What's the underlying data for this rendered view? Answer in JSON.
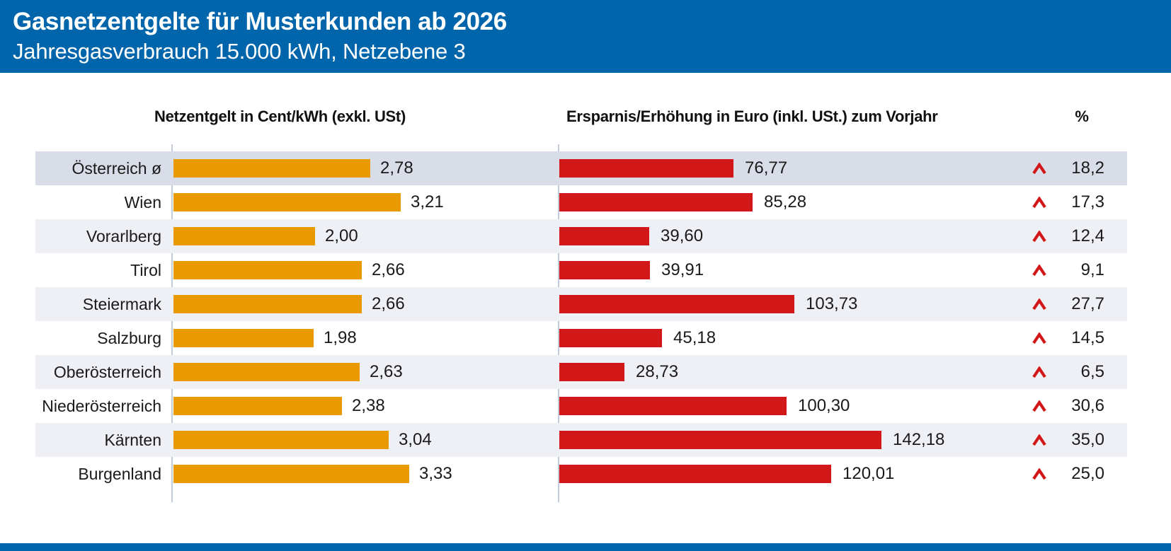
{
  "header": {
    "title": "Gasnetzentgelte für Musterkunden ab 2026",
    "subtitle": "Jahresgasverbrauch 15.000 kWh, Netzebene 3"
  },
  "columns": {
    "left_header": "Netzentgelt in Cent/kWh (exkl. USt)",
    "right_header": "Ersparnis/Erhöhung in Euro (inkl. USt.) zum Vorjahr",
    "percent_header": "%"
  },
  "colors": {
    "brand_blue": "#0065ab",
    "bar_orange": "#e89a00",
    "bar_red": "#d11718",
    "row_highlight": "#d8dde8",
    "row_alt": "#eef0f5",
    "axis_line": "#c2cdd9",
    "text_dark": "#1a1a1a"
  },
  "chart_data": {
    "type": "bar",
    "orientation": "horizontal",
    "title": "Gasnetzentgelte für Musterkunden ab 2026",
    "subtitle": "Jahresgasverbrauch 15.000 kWh, Netzebene 3",
    "categories": [
      "Österreich ø",
      "Wien",
      "Vorarlberg",
      "Tirol",
      "Steiermark",
      "Salzburg",
      "Oberösterreich",
      "Niederösterreich",
      "Kärnten",
      "Burgenland"
    ],
    "series": [
      {
        "name": "Netzentgelt in Cent/kWh (exkl. USt)",
        "values": [
          2.78,
          3.21,
          2.0,
          2.66,
          2.66,
          1.98,
          2.63,
          2.38,
          3.04,
          3.33
        ],
        "xlim": [
          0,
          3.5
        ],
        "color": "#e89a00"
      },
      {
        "name": "Ersparnis/Erhöhung in Euro (inkl. USt.) zum Vorjahr",
        "values": [
          76.77,
          85.28,
          39.6,
          39.91,
          103.73,
          45.18,
          28.73,
          100.3,
          142.18,
          120.01
        ],
        "xlim": [
          0,
          160
        ],
        "color": "#d11718"
      },
      {
        "name": "%",
        "values": [
          18.2,
          17.3,
          12.4,
          9.1,
          27.7,
          14.5,
          6.5,
          30.6,
          35.0,
          25.0
        ],
        "direction": "increase"
      }
    ],
    "legend": "none",
    "grid": "off",
    "rows": [
      {
        "region": "Österreich ø",
        "netzentgelt": 2.78,
        "netzentgelt_label": "2,78",
        "ersparnis": 76.77,
        "ersparnis_label": "76,77",
        "percent": 18.2,
        "percent_label": "18,2"
      },
      {
        "region": "Wien",
        "netzentgelt": 3.21,
        "netzentgelt_label": "3,21",
        "ersparnis": 85.28,
        "ersparnis_label": "85,28",
        "percent": 17.3,
        "percent_label": "17,3"
      },
      {
        "region": "Vorarlberg",
        "netzentgelt": 2.0,
        "netzentgelt_label": "2,00",
        "ersparnis": 39.6,
        "ersparnis_label": "39,60",
        "percent": 12.4,
        "percent_label": "12,4"
      },
      {
        "region": "Tirol",
        "netzentgelt": 2.66,
        "netzentgelt_label": "2,66",
        "ersparnis": 39.91,
        "ersparnis_label": "39,91",
        "percent": 9.1,
        "percent_label": "9,1"
      },
      {
        "region": "Steiermark",
        "netzentgelt": 2.66,
        "netzentgelt_label": "2,66",
        "ersparnis": 103.73,
        "ersparnis_label": "103,73",
        "percent": 27.7,
        "percent_label": "27,7"
      },
      {
        "region": "Salzburg",
        "netzentgelt": 1.98,
        "netzentgelt_label": "1,98",
        "ersparnis": 45.18,
        "ersparnis_label": "45,18",
        "percent": 14.5,
        "percent_label": "14,5"
      },
      {
        "region": "Oberösterreich",
        "netzentgelt": 2.63,
        "netzentgelt_label": "2,63",
        "ersparnis": 28.73,
        "ersparnis_label": "28,73",
        "percent": 6.5,
        "percent_label": "6,5"
      },
      {
        "region": "Niederösterreich",
        "netzentgelt": 2.38,
        "netzentgelt_label": "2,38",
        "ersparnis": 100.3,
        "ersparnis_label": "100,30",
        "percent": 30.6,
        "percent_label": "30,6"
      },
      {
        "region": "Kärnten",
        "netzentgelt": 3.04,
        "netzentgelt_label": "3,04",
        "ersparnis": 142.18,
        "ersparnis_label": "142,18",
        "percent": 35.0,
        "percent_label": "35,0"
      },
      {
        "region": "Burgenland",
        "netzentgelt": 3.33,
        "netzentgelt_label": "3,33",
        "ersparnis": 120.01,
        "ersparnis_label": "120,01",
        "percent": 25.0,
        "percent_label": "25,0"
      }
    ]
  }
}
